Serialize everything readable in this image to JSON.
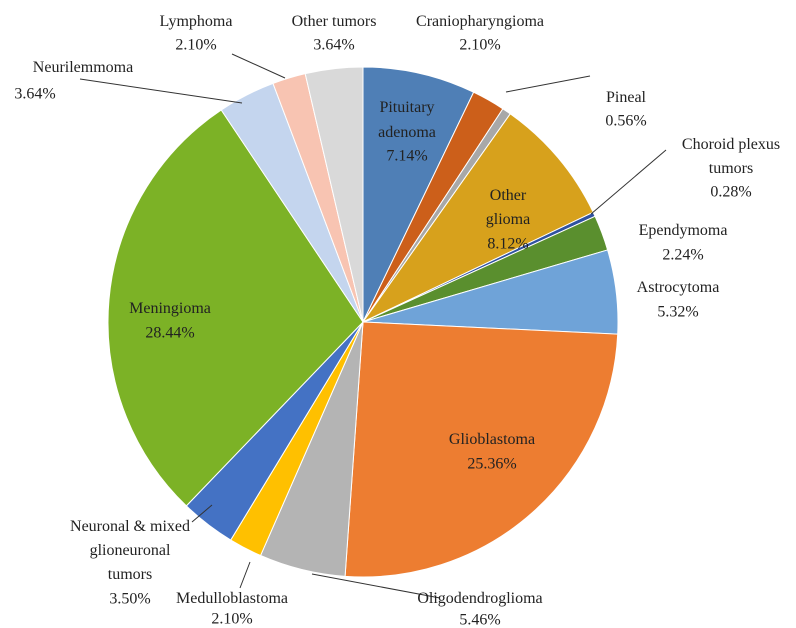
{
  "chart_data": {
    "type": "pie",
    "categories": [
      "Pituitary adenoma",
      "Craniopharyngioma",
      "Pineal",
      "Other glioma",
      "Choroid plexus tumors",
      "Ependymoma",
      "Astrocytoma",
      "Glioblastoma",
      "Oligodendroglioma",
      "Medulloblastoma",
      "Neuronal & mixed glioneuronal tumors",
      "Meningioma",
      "Neurilemmoma",
      "Lymphoma",
      "Other tumors"
    ],
    "values": [
      7.14,
      2.1,
      0.56,
      8.12,
      0.28,
      2.24,
      5.32,
      25.36,
      5.46,
      2.1,
      3.5,
      28.44,
      3.64,
      2.1,
      3.64
    ],
    "value_labels": [
      "7.14%",
      "2.10%",
      "0.56%",
      "8.12%",
      "0.28%",
      "2.24%",
      "5.32%",
      "25.36%",
      "5.46%",
      "2.10%",
      "3.50%",
      "28.44%",
      "3.64%",
      "2.10%",
      "3.64%"
    ],
    "colors": [
      "#4f7fb6",
      "#cc5f1a",
      "#a8a8a8",
      "#d7a11c",
      "#2f52a0",
      "#5a8f2e",
      "#6fa3d8",
      "#ed7d31",
      "#b4b4b4",
      "#ffc000",
      "#4472c4",
      "#7cb226",
      "#c4d5ee",
      "#f8c4b2",
      "#d9d9d9"
    ]
  }
}
